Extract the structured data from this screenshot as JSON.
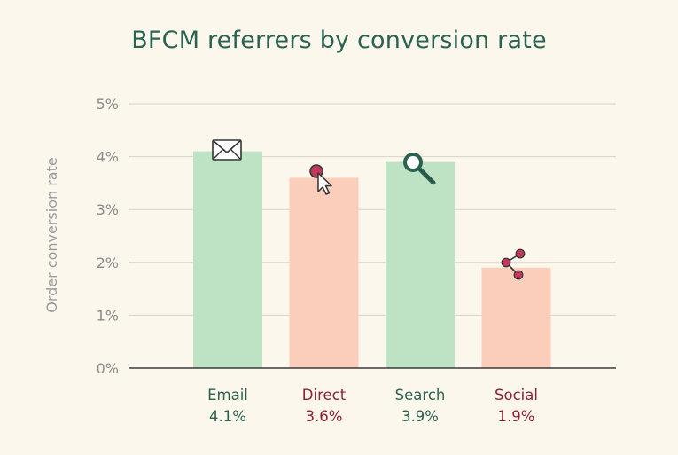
{
  "chart_data": {
    "type": "bar",
    "title": "BFCM referrers by conversion rate",
    "xlabel": "",
    "ylabel": "Order conversion rate",
    "ylim": [
      0,
      5
    ],
    "y_ticks": [
      "0%",
      "1%",
      "2%",
      "3%",
      "4%",
      "5%"
    ],
    "grid": true,
    "categories": [
      "Email",
      "Direct",
      "Search",
      "Social"
    ],
    "values": [
      4.1,
      3.6,
      3.9,
      1.9
    ],
    "value_labels": [
      "4.1%",
      "3.6%",
      "3.9%",
      "1.9%"
    ],
    "icons": [
      "envelope-icon",
      "cursor-click-icon",
      "magnifier-icon",
      "share-icon"
    ],
    "colors": {
      "green_bar": "#BEE2C4",
      "pink_bar": "#FBCDBB",
      "green_text": "#2B6150",
      "red_text": "#8E1F3C",
      "grid": "#D8D4C8",
      "axis": "#3A3A3A"
    },
    "bar_colors": [
      "#BEE2C4",
      "#FBCDBB",
      "#BEE2C4",
      "#FBCDBB"
    ],
    "label_colors": [
      "#2B6150",
      "#8E1F3C",
      "#2B6150",
      "#8E1F3C"
    ]
  }
}
